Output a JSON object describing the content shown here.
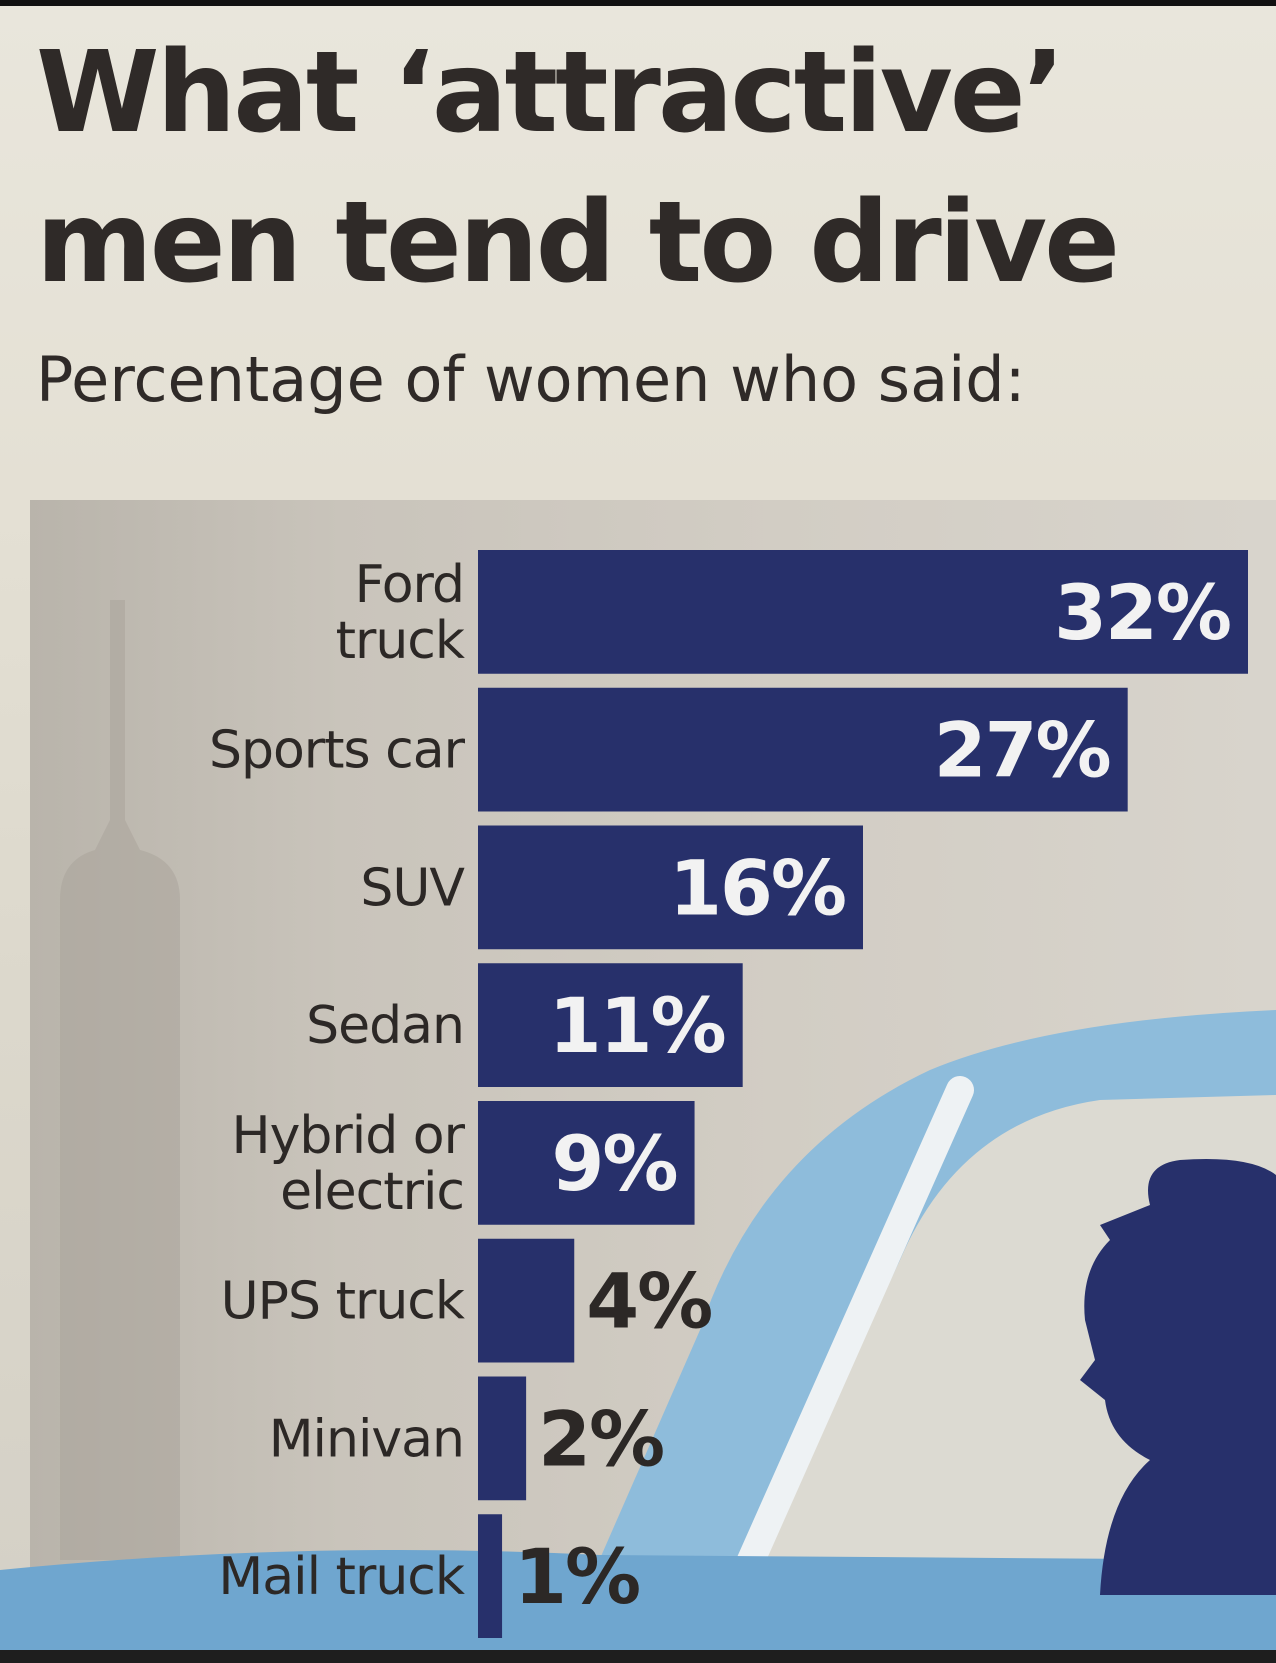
{
  "title": "What ‘attractive’ men tend to drive",
  "subtitle": "Percentage of women who said:",
  "colors": {
    "bar": "#27306b",
    "label_inside": "#f2f2f2",
    "label_outside": "#2c2826",
    "accent_blue": "#7fb4d6"
  },
  "chart_data": {
    "type": "bar",
    "orientation": "horizontal",
    "title": "What ‘attractive’ men tend to drive",
    "subtitle": "Percentage of women who said:",
    "unit": "%",
    "categories": [
      "Ford truck",
      "Sports car",
      "SUV",
      "Sedan",
      "Hybrid or electric",
      "UPS truck",
      "Minivan",
      "Mail truck"
    ],
    "category_lines": [
      [
        "Ford",
        "truck"
      ],
      [
        "Sports car"
      ],
      [
        "SUV"
      ],
      [
        "Sedan"
      ],
      [
        "Hybrid or",
        "electric"
      ],
      [
        "UPS truck"
      ],
      [
        "Minivan"
      ],
      [
        "Mail truck"
      ]
    ],
    "values": [
      32,
      27,
      16,
      11,
      9,
      4,
      2,
      1
    ],
    "value_labels": [
      "32%",
      "27%",
      "16%",
      "11%",
      "9%",
      "4%",
      "2%",
      "1%"
    ],
    "xlim": [
      0,
      32
    ],
    "grid": false,
    "legend": "none"
  }
}
